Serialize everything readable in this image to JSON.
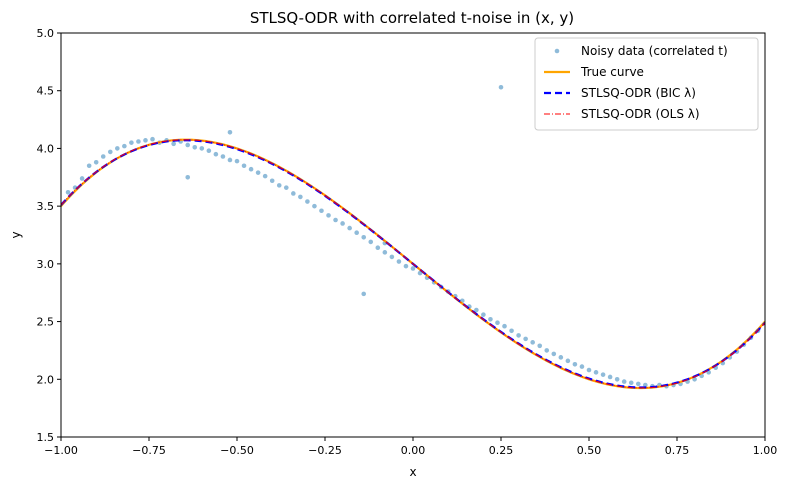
{
  "chart_data": {
    "type": "scatter",
    "title": "STLSQ-ODR with correlated t-noise in (x, y)",
    "xlabel": "x",
    "ylabel": "y",
    "xlim": [
      -1.0,
      1.0
    ],
    "ylim": [
      1.5,
      5.0
    ],
    "x_ticks": [
      "−1.00",
      "−0.75",
      "−0.50",
      "−0.25",
      "0.00",
      "0.25",
      "0.50",
      "0.75",
      "1.00"
    ],
    "x_tick_values": [
      -1.0,
      -0.75,
      -0.5,
      -0.25,
      0.0,
      0.25,
      0.5,
      0.75,
      1.0
    ],
    "y_ticks": [
      "1.5",
      "2.0",
      "2.5",
      "3.0",
      "3.5",
      "4.0",
      "4.5",
      "5.0"
    ],
    "y_tick_values": [
      1.5,
      2.0,
      2.5,
      3.0,
      3.5,
      4.0,
      4.5,
      5.0
    ],
    "grid": false,
    "legend_position": "top-right",
    "legend": [
      {
        "label": "Noisy data (correlated t)",
        "color": "#1f77b4",
        "style": "scatter"
      },
      {
        "label": "True curve",
        "color": "#ffa500",
        "style": "solid"
      },
      {
        "label": "STLSQ-ODR (BIC λ)",
        "color": "#0000ff",
        "style": "dashed"
      },
      {
        "label": "STLSQ-ODR (OLS λ)",
        "color": "#ff0000",
        "style": "dashdot"
      }
    ],
    "series": [
      {
        "name": "Noisy data (correlated t)",
        "kind": "scatter",
        "color": "#1f77b4",
        "x": [
          -0.98,
          -0.96,
          -0.94,
          -0.92,
          -0.9,
          -0.88,
          -0.86,
          -0.84,
          -0.82,
          -0.8,
          -0.78,
          -0.76,
          -0.74,
          -0.72,
          -0.7,
          -0.68,
          -0.66,
          -0.64,
          -0.62,
          -0.6,
          -0.58,
          -0.56,
          -0.54,
          -0.52,
          -0.5,
          -0.48,
          -0.46,
          -0.44,
          -0.42,
          -0.4,
          -0.38,
          -0.36,
          -0.34,
          -0.32,
          -0.3,
          -0.28,
          -0.26,
          -0.24,
          -0.22,
          -0.2,
          -0.18,
          -0.16,
          -0.14,
          -0.12,
          -0.1,
          -0.08,
          -0.06,
          -0.04,
          -0.02,
          0.0,
          0.02,
          0.04,
          0.06,
          0.08,
          0.1,
          0.12,
          0.14,
          0.16,
          0.18,
          0.2,
          0.22,
          0.24,
          0.26,
          0.28,
          0.3,
          0.32,
          0.34,
          0.36,
          0.38,
          0.4,
          0.42,
          0.44,
          0.46,
          0.48,
          0.5,
          0.52,
          0.54,
          0.56,
          0.58,
          0.6,
          0.62,
          0.64,
          0.66,
          0.68,
          0.7,
          0.72,
          0.74,
          0.76,
          0.78,
          0.8,
          0.82,
          0.84,
          0.86,
          0.88,
          0.9,
          0.92,
          0.94,
          0.96,
          0.98,
          0.25,
          -0.64,
          -0.52,
          -0.14,
          -0.08
        ],
        "y": [
          3.62,
          3.66,
          3.74,
          3.85,
          3.88,
          3.93,
          3.97,
          4.0,
          4.02,
          4.05,
          4.06,
          4.07,
          4.08,
          4.05,
          4.07,
          4.04,
          4.06,
          4.03,
          4.01,
          4.0,
          3.98,
          3.95,
          3.93,
          3.9,
          3.89,
          3.85,
          3.82,
          3.79,
          3.76,
          3.72,
          3.68,
          3.66,
          3.61,
          3.58,
          3.54,
          3.5,
          3.46,
          3.42,
          3.38,
          3.35,
          3.31,
          3.27,
          3.23,
          3.19,
          3.14,
          3.1,
          3.06,
          3.02,
          2.98,
          2.96,
          2.92,
          2.88,
          2.84,
          2.8,
          2.76,
          2.72,
          2.68,
          2.63,
          2.6,
          2.56,
          2.52,
          2.49,
          2.46,
          2.42,
          2.38,
          2.35,
          2.32,
          2.29,
          2.25,
          2.22,
          2.19,
          2.16,
          2.13,
          2.11,
          2.08,
          2.06,
          2.04,
          2.02,
          2.0,
          1.98,
          1.97,
          1.96,
          1.95,
          1.94,
          1.95,
          1.94,
          1.95,
          1.96,
          1.98,
          2.0,
          2.03,
          2.06,
          2.1,
          2.14,
          2.19,
          2.24,
          2.3,
          2.36,
          2.42,
          4.53,
          3.75,
          4.14,
          2.74,
          3.18
        ]
      },
      {
        "name": "True curve",
        "kind": "line",
        "color": "#ffa500",
        "formula_coeffs": [
          3.0,
          -2.5,
          0.0,
          2.0
        ],
        "note_coeffs_order": "c0 + c1*x + c2*x^2 + c3*x^3"
      },
      {
        "name": "STLSQ-ODR (BIC λ)",
        "kind": "line",
        "color": "#0000ff",
        "formula_coeffs": [
          3.0,
          -2.48,
          0.0,
          1.97
        ]
      },
      {
        "name": "STLSQ-ODR (OLS λ)",
        "kind": "line",
        "color": "#ff0000",
        "formula_coeffs": [
          3.0,
          -2.49,
          0.0,
          1.98
        ]
      }
    ]
  }
}
